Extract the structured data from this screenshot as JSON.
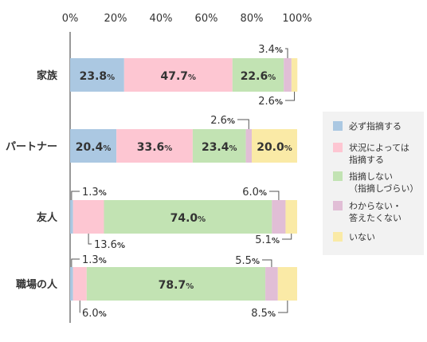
{
  "chart_data": {
    "type": "bar",
    "orientation": "horizontal",
    "stacked": true,
    "xlim": [
      0,
      100
    ],
    "x_ticks": [
      "0%",
      "20%",
      "40%",
      "60%",
      "80%",
      "100%"
    ],
    "categories": [
      "家族",
      "パートナー",
      "友人",
      "職場の人"
    ],
    "series": [
      {
        "name": "必ず指摘する",
        "color": "#abc8e2",
        "values": [
          23.8,
          20.4,
          1.3,
          1.3
        ]
      },
      {
        "name": "状況によっては指摘する",
        "color": "#fdc6d2",
        "values": [
          47.7,
          33.6,
          13.6,
          6.0
        ]
      },
      {
        "name": "指摘しない（指摘しづらい）",
        "color": "#c2e3b3",
        "values": [
          22.6,
          23.4,
          74.0,
          78.7
        ]
      },
      {
        "name": "わからない・答えたくない",
        "color": "#e1bed6",
        "values": [
          3.4,
          2.6,
          6.0,
          5.5
        ]
      },
      {
        "name": "いない",
        "color": "#faeaa6",
        "values": [
          2.6,
          20.0,
          5.1,
          8.5
        ]
      }
    ],
    "legend_labels": [
      [
        "必ず指摘する"
      ],
      [
        "状況によっては",
        "指摘する"
      ],
      [
        "指摘しない",
        "（指摘しづらい）"
      ],
      [
        "わからない・",
        "答えたくない"
      ],
      [
        "いない"
      ]
    ],
    "unit": "%",
    "legend_position": "right",
    "grid": false
  }
}
